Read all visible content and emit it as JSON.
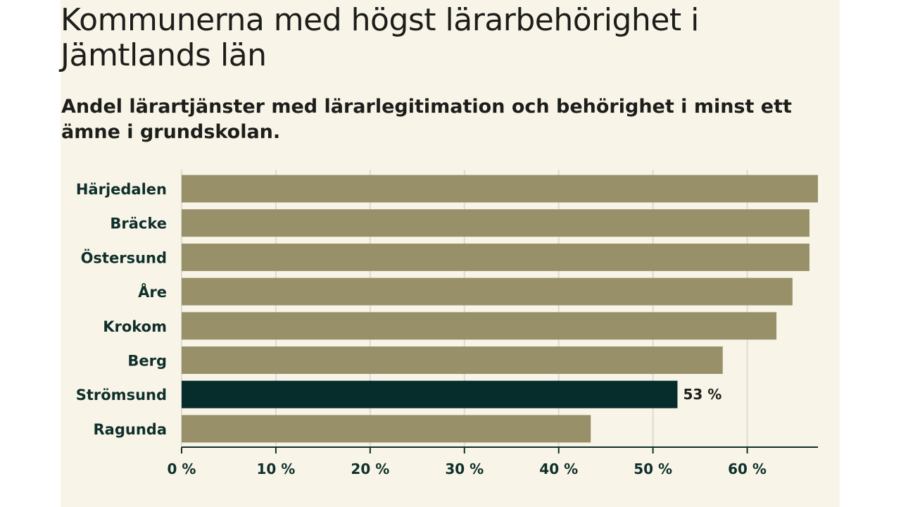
{
  "header": {
    "title": "Kommunerna med högst lärarbehörighet i Jämtlands län",
    "subtitle": "Andel lärartjänster med lärarlegitimation och behörighet i minst ett ämne i grundskolan."
  },
  "colors": {
    "panel_background": "#f8f5e8",
    "bar_default": "#989069",
    "bar_highlight": "#072c2c",
    "axis": "#0f2f2b",
    "grid": "#dedbd0",
    "text": "#1d1d1b"
  },
  "chart_data": {
    "type": "bar",
    "orientation": "horizontal",
    "categories": [
      "Härjedalen",
      "Bräcke",
      "Östersund",
      "Åre",
      "Krokom",
      "Berg",
      "Strömsund",
      "Ragunda"
    ],
    "values": [
      67.5,
      66.6,
      66.6,
      64.8,
      63.1,
      57.4,
      52.6,
      43.4
    ],
    "highlight": "Strömsund",
    "data_labels": [
      {
        "category": "Strömsund",
        "text": "53 %"
      }
    ],
    "xlim": [
      0,
      67.5
    ],
    "xticks": [
      0,
      10,
      20,
      30,
      40,
      50,
      60
    ],
    "xtick_labels": [
      "0 %",
      "10 %",
      "20 %",
      "30 %",
      "40 %",
      "50 %",
      "60 %"
    ],
    "grid": true,
    "title": "Kommunerna med högst lärarbehörighet i Jämtlands län",
    "xlabel": "",
    "ylabel": ""
  }
}
